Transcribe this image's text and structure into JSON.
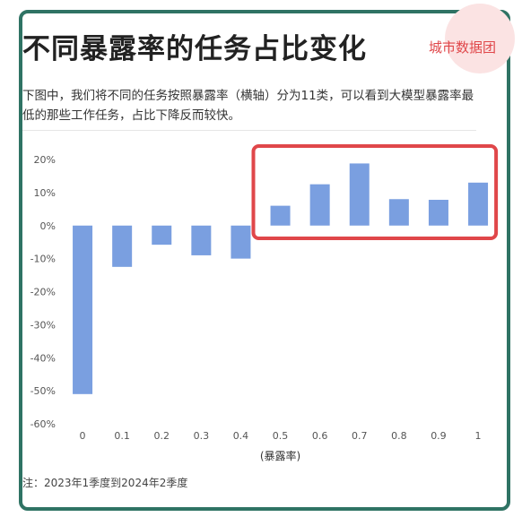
{
  "header": {
    "title": "不同暴露率的任务占比变化",
    "subtitle": "下图中，我们将不同的任务按照暴露率（横轴）分为11类，可以看到大模型暴露率最低的那些工作任务，占比下降反而较快。",
    "brand": "城市数据团"
  },
  "footnote": "注：2023年1季度到2024年2季度",
  "colors": {
    "bar": "#7a9fe0",
    "frame": "#2f7364",
    "highlight": "#e0474a"
  },
  "chart_data": {
    "type": "bar",
    "categories": [
      "0",
      "0.1",
      "0.2",
      "0.3",
      "0.4",
      "0.5",
      "0.6",
      "0.7",
      "0.8",
      "0.9",
      "1"
    ],
    "values": [
      -51,
      -12.5,
      -5.8,
      -9,
      -10,
      6,
      12.5,
      18.8,
      8,
      7.8,
      13
    ],
    "xlabel": "(暴露率)",
    "ylabel": "",
    "ylim": [
      -60,
      20
    ],
    "yticks": [
      "20%",
      "10%",
      "0%",
      "-10%",
      "-20%",
      "-30%",
      "-40%",
      "-50%",
      "-60%"
    ],
    "grid": false,
    "highlight_categories": [
      "0.5",
      "0.6",
      "0.7",
      "0.8",
      "0.9",
      "1"
    ]
  }
}
